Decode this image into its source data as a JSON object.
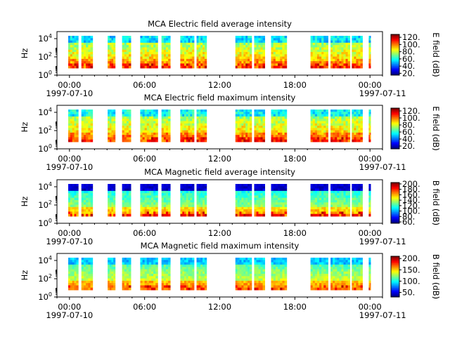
{
  "chart_data": [
    {
      "type": "heatmap",
      "title": "MCA  Electric field average intensity",
      "ylabel": "Hz",
      "colorbar_label": "E field (dB)",
      "colorbar_ticks": [
        "20.",
        "40.",
        "60.",
        "80.",
        "100.",
        "120."
      ],
      "colorbar_range": [
        15,
        128
      ],
      "colormap": "jet",
      "y_scale": "log",
      "y_ticks": [
        {
          "base": "10",
          "exp": "0"
        },
        {
          "base": "10",
          "exp": "2"
        },
        {
          "base": "10",
          "exp": "4"
        }
      ],
      "x_ticks": [
        "00:00",
        "06:00",
        "12:00",
        "18:00",
        "00:00"
      ],
      "x_dates": [
        "1997-07-10",
        "1997-07-11"
      ],
      "x_range_hours": [
        -1,
        25
      ],
      "background": "#ffffff"
    },
    {
      "type": "heatmap",
      "title": "MCA  Electric field maximum intensity",
      "ylabel": "Hz",
      "colorbar_label": "E field (dB)",
      "colorbar_ticks": [
        "20.",
        "40.",
        "60.",
        "80.",
        "100.",
        "120."
      ],
      "colorbar_range": [
        12,
        128
      ],
      "colormap": "jet",
      "y_scale": "log",
      "y_ticks": [
        {
          "base": "10",
          "exp": "0"
        },
        {
          "base": "10",
          "exp": "2"
        },
        {
          "base": "10",
          "exp": "4"
        }
      ],
      "x_ticks": [
        "00:00",
        "06:00",
        "12:00",
        "18:00",
        "00:00"
      ],
      "x_dates": [
        "1997-07-10",
        "1997-07-11"
      ],
      "x_range_hours": [
        -1,
        25
      ],
      "background": "#ffffff"
    },
    {
      "type": "heatmap",
      "title": "MCA  Magnetic field average intensity",
      "ylabel": "Hz",
      "colorbar_label": "B field (dB)",
      "colorbar_ticks": [
        "60.",
        "80.",
        "100.",
        "120.",
        "140.",
        "160.",
        "180.",
        "200."
      ],
      "colorbar_range": [
        55,
        205
      ],
      "colormap": "jet",
      "y_scale": "log",
      "y_ticks": [
        {
          "base": "10",
          "exp": "0"
        },
        {
          "base": "10",
          "exp": "2"
        },
        {
          "base": "10",
          "exp": "4"
        }
      ],
      "x_ticks": [
        "00:00",
        "06:00",
        "12:00",
        "18:00",
        "00:00"
      ],
      "x_dates": [
        "1997-07-10",
        "1997-07-11"
      ],
      "x_range_hours": [
        -1,
        25
      ],
      "background": "#ffffff"
    },
    {
      "type": "heatmap",
      "title": "MCA  Magnetic field maximum intensity",
      "ylabel": "Hz",
      "colorbar_label": "B field (dB)",
      "colorbar_ticks": [
        "50.",
        "100.",
        "150.",
        "200."
      ],
      "colorbar_range": [
        30,
        210
      ],
      "colormap": "jet",
      "y_scale": "log",
      "y_ticks": [
        {
          "base": "10",
          "exp": "0"
        },
        {
          "base": "10",
          "exp": "2"
        },
        {
          "base": "10",
          "exp": "4"
        }
      ],
      "x_ticks": [
        "00:00",
        "06:00",
        "12:00",
        "18:00",
        "00:00"
      ],
      "x_dates": [
        "1997-07-10",
        "1997-07-11"
      ],
      "x_range_hours": [
        -1,
        25
      ],
      "background": "#ffffff"
    }
  ]
}
